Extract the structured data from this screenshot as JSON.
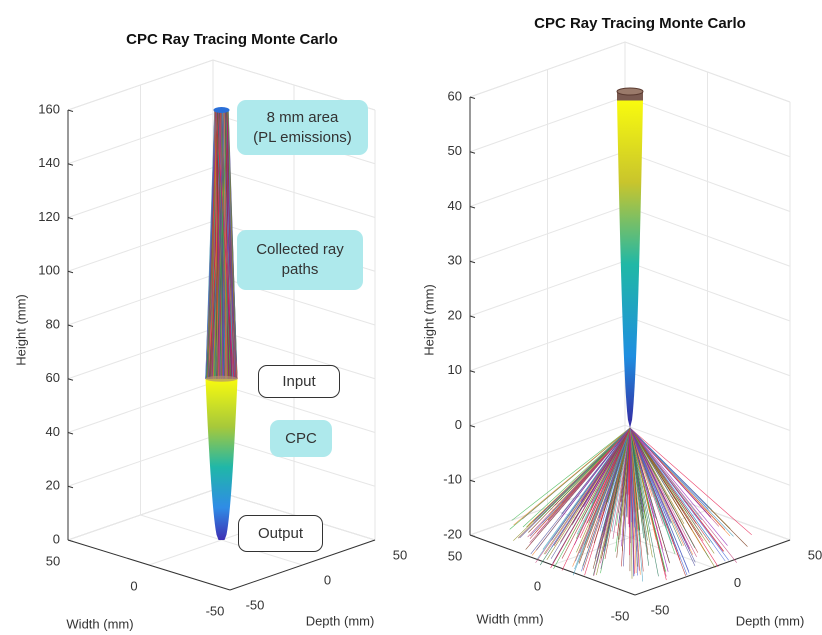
{
  "chart_data": [
    {
      "type": "3d-surface",
      "title": "CPC Ray Tracing Monte Carlo",
      "xlabel": "Width (mm)",
      "ylabel": "Depth (mm)",
      "zlabel": "Height (mm)",
      "xlim": [
        -50,
        50
      ],
      "ylim": [
        -50,
        50
      ],
      "zlim": [
        0,
        160
      ],
      "xticks": [
        50,
        0,
        -50
      ],
      "yticks": [
        -50,
        0,
        50
      ],
      "zticks": [
        0,
        20,
        40,
        60,
        80,
        100,
        120,
        140,
        160
      ],
      "grid": true,
      "annotations": [
        {
          "lines": [
            "8 mm area",
            "(PL emissions)"
          ],
          "fill": "#aee9ec"
        },
        {
          "lines": [
            "Collected ray",
            "paths"
          ],
          "fill": "#aee9ec"
        },
        {
          "lines": [
            "Input"
          ],
          "fill": "#ffffff"
        },
        {
          "lines": [
            "CPC"
          ],
          "fill": "#aee9ec"
        },
        {
          "lines": [
            "Output"
          ],
          "fill": "#ffffff"
        }
      ]
    },
    {
      "type": "3d-surface",
      "title": "CPC Ray Tracing Monte Carlo",
      "xlabel": "Width (mm)",
      "ylabel": "Depth (mm)",
      "zlabel": "Height (mm)",
      "xlim": [
        -50,
        50
      ],
      "ylim": [
        -50,
        50
      ],
      "zlim": [
        -20,
        60
      ],
      "xticks": [
        50,
        0,
        -50
      ],
      "yticks": [
        -50,
        0,
        50
      ],
      "zticks": [
        -20,
        -10,
        0,
        10,
        20,
        30,
        40,
        50,
        60
      ],
      "grid": true
    }
  ]
}
